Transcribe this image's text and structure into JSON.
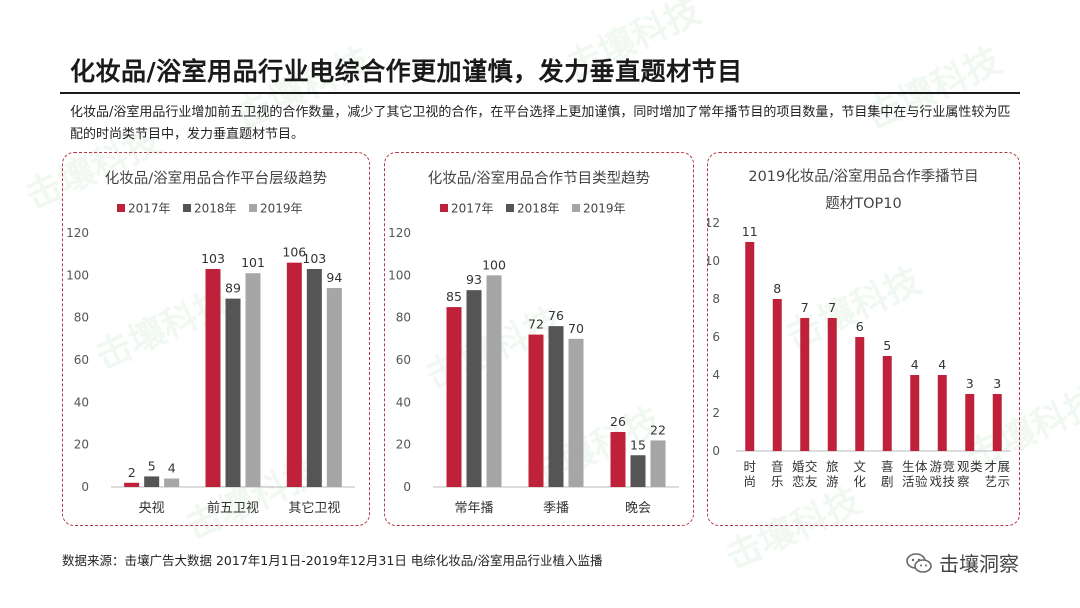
{
  "header": {
    "title": "化妆品/浴室用品行业电综合作更加谨慎，发力垂直题材节目",
    "subtitle": "化妆品/浴室用品行业增加前五卫视的合作数量，减少了其它卫视的合作，在平台选择上更加谨慎，同时增加了常年播节目的项目数量，节目集中在与行业属性较为匹配的时尚类节目中，发力垂直题材节目。"
  },
  "colors": {
    "y2017": "#c0213a",
    "y2018": "#555555",
    "y2019": "#a6a6a6",
    "top10": "#c0213a",
    "panel_border": "#b23a48"
  },
  "chart_data": [
    {
      "type": "bar",
      "title": "化妆品/浴室用品合作平台层级趋势",
      "categories": [
        "央视",
        "前五卫视",
        "其它卫视"
      ],
      "series": [
        {
          "name": "2017年",
          "values": [
            2,
            103,
            106
          ]
        },
        {
          "name": "2018年",
          "values": [
            5,
            89,
            103
          ]
        },
        {
          "name": "2019年",
          "values": [
            4,
            101,
            94
          ]
        }
      ],
      "ylim": [
        0,
        120
      ],
      "yticks": [
        0,
        20,
        40,
        60,
        80,
        100,
        120
      ],
      "legend": "top",
      "grid": false
    },
    {
      "type": "bar",
      "title": "化妆品/浴室用品合作节目类型趋势",
      "categories": [
        "常年播",
        "季播",
        "晚会"
      ],
      "series": [
        {
          "name": "2017年",
          "values": [
            85,
            72,
            26
          ]
        },
        {
          "name": "2018年",
          "values": [
            93,
            76,
            15
          ]
        },
        {
          "name": "2019年",
          "values": [
            100,
            70,
            22
          ]
        }
      ],
      "ylim": [
        0,
        120
      ],
      "yticks": [
        0,
        20,
        40,
        60,
        80,
        100,
        120
      ],
      "legend": "top",
      "grid": false
    },
    {
      "type": "bar",
      "title": "2019化妆品/浴室用品合作季播节目",
      "title_line2": "题材TOP10",
      "categories": [
        "时尚",
        "音乐",
        "婚恋交友",
        "旅游",
        "文化",
        "喜剧",
        "生活体验",
        "游戏竞技",
        "观察类",
        "才艺展示"
      ],
      "values": [
        11,
        8,
        7,
        7,
        6,
        5,
        4,
        4,
        3,
        3
      ],
      "ylim": [
        0,
        12
      ],
      "yticks": [
        0,
        2,
        4,
        6,
        8,
        10,
        12
      ],
      "grid": false
    }
  ],
  "footer": {
    "source": "数据来源：击壤广告大数据 2017年1月1日-2019年12月31日 电综化妆品/浴室用品行业植入监播",
    "brand": "击壤洞察"
  },
  "watermark_text": "击壤科技"
}
